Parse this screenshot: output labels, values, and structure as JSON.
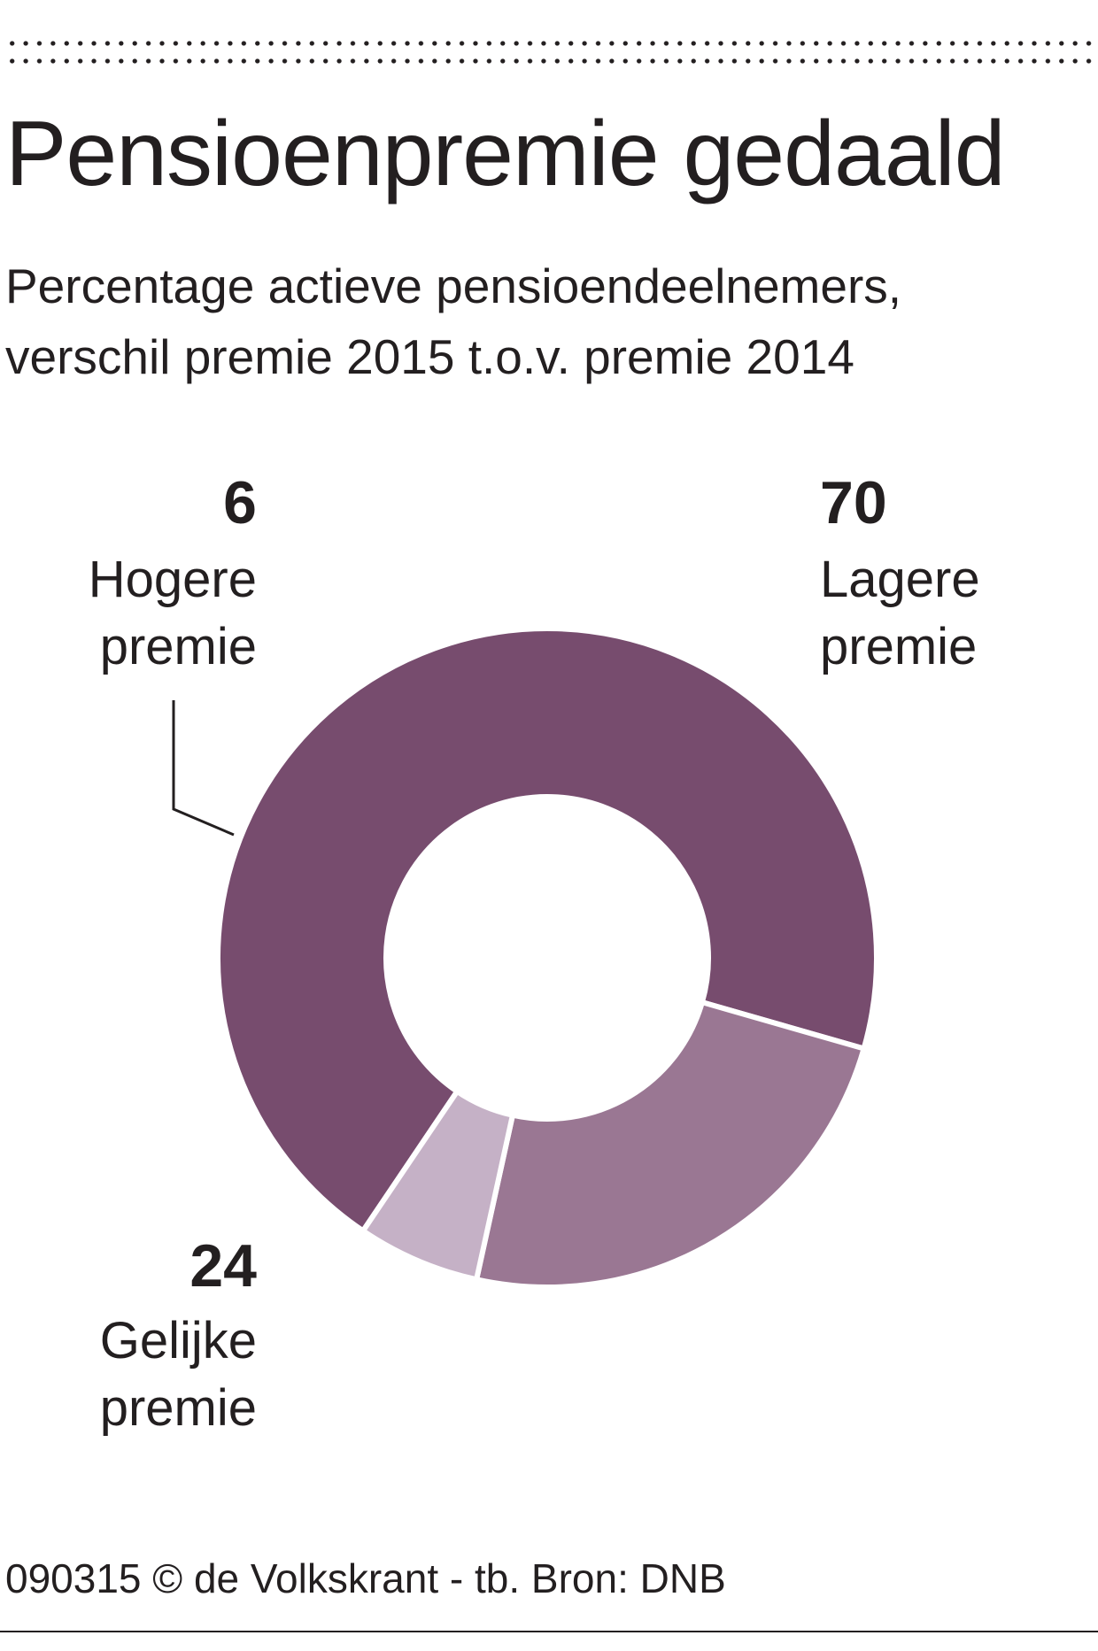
{
  "title": "Pensioenpremie gedaald",
  "subtitle": [
    "Percentage actieve pensioendeelnemers,",
    "verschil premie 2015 t.o.v. premie 2014"
  ],
  "chart_data": {
    "type": "pie",
    "style": "donut",
    "title": "Pensioenpremie gedaald",
    "unit": "%",
    "slices": [
      {
        "value": 70,
        "label": [
          "Lagere",
          "premie"
        ],
        "color": "#774c6e"
      },
      {
        "value": 24,
        "label": [
          "Gelijke",
          "premie"
        ],
        "color": "#9a7793"
      },
      {
        "value": 6,
        "label": [
          "Hogere",
          "premie"
        ],
        "color": "#c5b1c6"
      }
    ],
    "legend": "none"
  },
  "source": "090315 © de Volkskrant - tb. Bron: DNB"
}
